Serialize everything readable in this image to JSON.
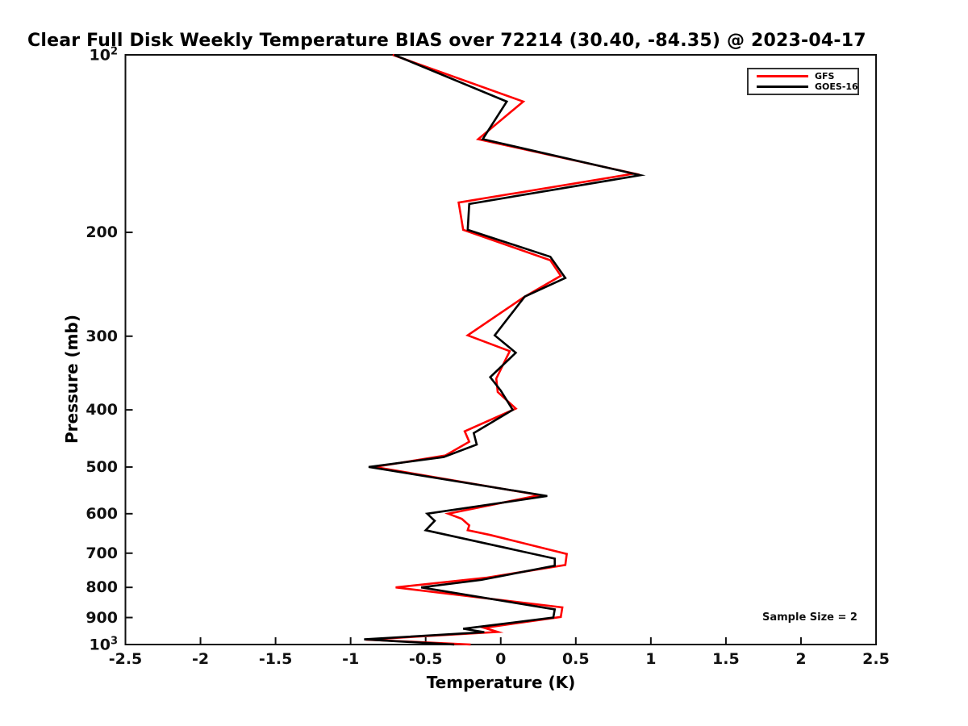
{
  "title": "Clear Full Disk Weekly Temperature BIAS over 72214 (30.40, -84.35) @ 2023-04-17",
  "axes": {
    "x": {
      "label": "Temperature (K)",
      "range": [
        -2.5,
        2.5
      ],
      "tick_values": [
        -2.5,
        -2,
        -1.5,
        -1,
        -0.5,
        0,
        0.5,
        1,
        1.5,
        2,
        2.5
      ],
      "tick_labels": [
        "-2.5",
        "-2",
        "-1.5",
        "-1",
        "-0.5",
        "0",
        "0.5",
        "1",
        "1.5",
        "2",
        "2.5"
      ]
    },
    "y": {
      "label": "Pressure (mb)",
      "scale": "log",
      "range": [
        100,
        1000
      ],
      "direction": "increasing-downward",
      "tick_values": [
        100,
        200,
        300,
        400,
        500,
        600,
        700,
        800,
        900,
        1000
      ],
      "tick_labels": [
        "10^2",
        "200",
        "300",
        "400",
        "500",
        "600",
        "700",
        "800",
        "900",
        "10^3"
      ]
    }
  },
  "legend": {
    "items": [
      {
        "label": "GFS",
        "color": "#ff0000"
      },
      {
        "label": "GOES-16",
        "color": "#000000"
      }
    ]
  },
  "annotation": {
    "sample_size": "Sample Size = 2"
  },
  "chart_data": {
    "type": "line",
    "title": "Clear Full Disk Weekly Temperature BIAS over 72214 (30.40, -84.35) @ 2023-04-17",
    "xlabel": "Temperature (K)",
    "ylabel": "Pressure (mb)",
    "xlim": [
      -2.5,
      2.5
    ],
    "ylim": [
      100,
      1000
    ],
    "yscale": "log",
    "yaxis_inverted": true,
    "grid": false,
    "legend_position": "upper right",
    "point_format": "[pressure_mb, temperature_bias_K]",
    "series": [
      {
        "name": "GFS",
        "color": "#ff0000",
        "points": [
          [
            100,
            -0.72
          ],
          [
            120,
            0.15
          ],
          [
            139,
            -0.15
          ],
          [
            159,
            0.89
          ],
          [
            178,
            -0.28
          ],
          [
            198,
            -0.25
          ],
          [
            223,
            0.33
          ],
          [
            237,
            0.4
          ],
          [
            258,
            0.15
          ],
          [
            299,
            -0.22
          ],
          [
            318,
            0.06
          ],
          [
            354,
            -0.03
          ],
          [
            373,
            -0.02
          ],
          [
            398,
            0.1
          ],
          [
            435,
            -0.24
          ],
          [
            453,
            -0.21
          ],
          [
            478,
            -0.37
          ],
          [
            500,
            -0.84
          ],
          [
            558,
            0.26
          ],
          [
            600,
            -0.35
          ],
          [
            612,
            -0.26
          ],
          [
            628,
            -0.21
          ],
          [
            640,
            -0.22
          ],
          [
            652,
            -0.07
          ],
          [
            702,
            0.44
          ],
          [
            733,
            0.43
          ],
          [
            770,
            -0.09
          ],
          [
            800,
            -0.7
          ],
          [
            865,
            0.41
          ],
          [
            898,
            0.4
          ],
          [
            937,
            -0.11
          ],
          [
            952,
            -0.02
          ],
          [
            981,
            -0.9
          ],
          [
            1000,
            -0.2
          ]
        ]
      },
      {
        "name": "GOES-16",
        "color": "#000000",
        "points": [
          [
            100,
            -0.71
          ],
          [
            120,
            0.04
          ],
          [
            139,
            -0.12
          ],
          [
            160,
            0.93
          ],
          [
            179,
            -0.21
          ],
          [
            198,
            -0.22
          ],
          [
            220,
            0.33
          ],
          [
            239,
            0.43
          ],
          [
            257,
            0.16
          ],
          [
            299,
            -0.04
          ],
          [
            320,
            0.1
          ],
          [
            352,
            -0.07
          ],
          [
            371,
            0.0
          ],
          [
            400,
            0.08
          ],
          [
            438,
            -0.18
          ],
          [
            458,
            -0.16
          ],
          [
            481,
            -0.38
          ],
          [
            500,
            -0.88
          ],
          [
            560,
            0.31
          ],
          [
            600,
            -0.49
          ],
          [
            617,
            -0.44
          ],
          [
            640,
            -0.5
          ],
          [
            715,
            0.36
          ],
          [
            735,
            0.36
          ],
          [
            777,
            -0.13
          ],
          [
            800,
            -0.53
          ],
          [
            872,
            0.36
          ],
          [
            900,
            0.35
          ],
          [
            940,
            -0.25
          ],
          [
            953,
            -0.11
          ],
          [
            980,
            -0.91
          ],
          [
            1000,
            -0.31
          ]
        ]
      }
    ]
  }
}
